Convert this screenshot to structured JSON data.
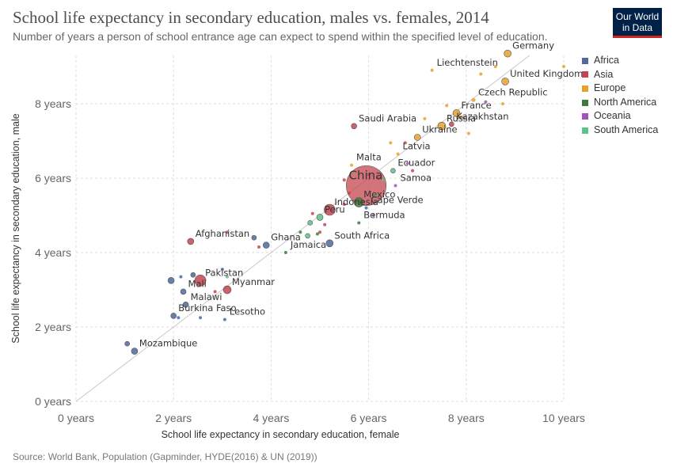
{
  "title": "School life expectancy in secondary education, males vs. females, 2014",
  "subtitle": "Number of years a person of school entrance age can expect to spend within the specified level of education.",
  "logo": {
    "line1": "Our World",
    "line2": "in Data"
  },
  "source": "Source: World Bank, Population (Gapminder, HYDE(2016) & UN (2019))",
  "legend": [
    {
      "name": "Africa",
      "color": "#4c6a9c"
    },
    {
      "name": "Asia",
      "color": "#c4454f"
    },
    {
      "name": "Europe",
      "color": "#e8a030"
    },
    {
      "name": "North America",
      "color": "#3e7a3b"
    },
    {
      "name": "Oceania",
      "color": "#a054b5"
    },
    {
      "name": "South America",
      "color": "#5ec28a"
    }
  ],
  "chart_data": {
    "type": "scatter",
    "title": "School life expectancy in secondary education, males vs. females, 2014",
    "xlabel": "School life expectancy in secondary education, female",
    "ylabel": "School life expectancy in secondary education, male",
    "xlim": [
      0,
      10
    ],
    "ylim": [
      0,
      9.3
    ],
    "x_ticks": [
      "0 years",
      "2 years",
      "4 years",
      "6 years",
      "8 years",
      "10 years"
    ],
    "y_ticks": [
      "0 years",
      "2 years",
      "4 years",
      "6 years",
      "8 years"
    ],
    "x_tick_values": [
      0,
      2,
      4,
      6,
      8,
      10
    ],
    "y_tick_values": [
      0,
      2,
      4,
      6,
      8
    ],
    "grid": true,
    "legend_position": "right",
    "points": [
      {
        "label": "Germany",
        "x": 8.85,
        "y": 9.35,
        "region": "Europe",
        "size": 4.5
      },
      {
        "label": "Liechtenstein",
        "x": 7.3,
        "y": 8.9,
        "region": "Europe",
        "size": 2
      },
      {
        "label": "United Kingdom",
        "x": 8.8,
        "y": 8.6,
        "region": "Europe",
        "size": 4.5
      },
      {
        "label": "Czech Republic",
        "x": 8.15,
        "y": 8.1,
        "region": "Europe",
        "size": 2.5
      },
      {
        "label": "France",
        "x": 7.8,
        "y": 7.75,
        "region": "Europe",
        "size": 4.5
      },
      {
        "label": "Saudi Arabia",
        "x": 5.7,
        "y": 7.4,
        "region": "Asia",
        "size": 3.5
      },
      {
        "label": "Russia",
        "x": 7.5,
        "y": 7.4,
        "region": "Europe",
        "size": 5
      },
      {
        "label": "Kazakhstan",
        "x": 7.7,
        "y": 7.45,
        "region": "Asia",
        "size": 3
      },
      {
        "label": "Ukraine",
        "x": 7.0,
        "y": 7.1,
        "region": "Europe",
        "size": 4
      },
      {
        "label": "Latvia",
        "x": 6.6,
        "y": 6.65,
        "region": "Europe",
        "size": 2
      },
      {
        "label": "Malta",
        "x": 5.65,
        "y": 6.35,
        "region": "Europe",
        "size": 2
      },
      {
        "label": "Ecuador",
        "x": 6.5,
        "y": 6.2,
        "region": "South America",
        "size": 3
      },
      {
        "label": "Samoa",
        "x": 6.55,
        "y": 5.8,
        "region": "Oceania",
        "size": 2
      },
      {
        "label": "China",
        "x": 5.95,
        "y": 5.8,
        "region": "Asia",
        "size": 12
      },
      {
        "label": "Mexico",
        "x": 5.8,
        "y": 5.35,
        "region": "North America",
        "size": 6
      },
      {
        "label": "Indonesia",
        "x": 5.2,
        "y": 5.15,
        "region": "Asia",
        "size": 7
      },
      {
        "label": "Cape Verde",
        "x": 5.95,
        "y": 5.2,
        "region": "Africa",
        "size": 2
      },
      {
        "label": "Peru",
        "x": 5.0,
        "y": 4.95,
        "region": "South America",
        "size": 4
      },
      {
        "label": "Bermuda",
        "x": 5.8,
        "y": 4.8,
        "region": "North America",
        "size": 2
      },
      {
        "label": "Afghanistan",
        "x": 2.35,
        "y": 4.3,
        "region": "Asia",
        "size": 4
      },
      {
        "label": "Ghana",
        "x": 3.9,
        "y": 4.2,
        "region": "Africa",
        "size": 4
      },
      {
        "label": "South Africa",
        "x": 5.2,
        "y": 4.25,
        "region": "Africa",
        "size": 4.5
      },
      {
        "label": "Jamaica",
        "x": 4.3,
        "y": 4.0,
        "region": "North America",
        "size": 2
      },
      {
        "label": "Pakistan",
        "x": 2.55,
        "y": 3.25,
        "region": "Asia",
        "size": 7
      },
      {
        "label": "Myanmar",
        "x": 3.1,
        "y": 3.0,
        "region": "Asia",
        "size": 5
      },
      {
        "label": "Mali",
        "x": 2.2,
        "y": 2.95,
        "region": "Africa",
        "size": 3.5
      },
      {
        "label": "Malawi",
        "x": 2.25,
        "y": 2.6,
        "region": "Africa",
        "size": 3.5
      },
      {
        "label": "Burkina Faso",
        "x": 2.0,
        "y": 2.3,
        "region": "Africa",
        "size": 3.5
      },
      {
        "label": "Lesotho",
        "x": 3.05,
        "y": 2.2,
        "region": "Africa",
        "size": 2
      },
      {
        "label": "Mozambique",
        "x": 1.2,
        "y": 1.35,
        "region": "Africa",
        "size": 4
      }
    ],
    "unlabeled_points": [
      {
        "x": 10.0,
        "y": 9.0,
        "region": "Europe",
        "size": 2
      },
      {
        "x": 8.6,
        "y": 9.0,
        "region": "Europe",
        "size": 2
      },
      {
        "x": 8.3,
        "y": 8.8,
        "region": "Europe",
        "size": 2
      },
      {
        "x": 7.6,
        "y": 7.95,
        "region": "Europe",
        "size": 2
      },
      {
        "x": 7.9,
        "y": 7.65,
        "region": "Europe",
        "size": 2
      },
      {
        "x": 8.05,
        "y": 7.2,
        "region": "Europe",
        "size": 2
      },
      {
        "x": 8.4,
        "y": 8.05,
        "region": "Oceania",
        "size": 2
      },
      {
        "x": 8.75,
        "y": 8.0,
        "region": "Europe",
        "size": 2
      },
      {
        "x": 7.15,
        "y": 7.6,
        "region": "Europe",
        "size": 2
      },
      {
        "x": 6.45,
        "y": 6.95,
        "region": "Europe",
        "size": 2
      },
      {
        "x": 6.75,
        "y": 6.95,
        "region": "Asia",
        "size": 2
      },
      {
        "x": 6.9,
        "y": 6.2,
        "region": "Asia",
        "size": 2
      },
      {
        "x": 6.8,
        "y": 6.4,
        "region": "Oceania",
        "size": 2
      },
      {
        "x": 6.0,
        "y": 6.1,
        "region": "Asia",
        "size": 2
      },
      {
        "x": 6.2,
        "y": 6.0,
        "region": "Asia",
        "size": 2
      },
      {
        "x": 5.5,
        "y": 5.95,
        "region": "Asia",
        "size": 2
      },
      {
        "x": 6.3,
        "y": 5.95,
        "region": "South America",
        "size": 2
      },
      {
        "x": 5.6,
        "y": 5.6,
        "region": "Asia",
        "size": 2
      },
      {
        "x": 6.15,
        "y": 5.55,
        "region": "South America",
        "size": 2
      },
      {
        "x": 5.5,
        "y": 5.3,
        "region": "Asia",
        "size": 2
      },
      {
        "x": 4.85,
        "y": 5.05,
        "region": "Asia",
        "size": 2
      },
      {
        "x": 5.1,
        "y": 4.75,
        "region": "Asia",
        "size": 2
      },
      {
        "x": 5.0,
        "y": 4.55,
        "region": "Asia",
        "size": 2
      },
      {
        "x": 4.8,
        "y": 4.8,
        "region": "South America",
        "size": 3
      },
      {
        "x": 6.1,
        "y": 5.0,
        "region": "Oceania",
        "size": 2
      },
      {
        "x": 4.75,
        "y": 4.45,
        "region": "South America",
        "size": 3
      },
      {
        "x": 4.95,
        "y": 4.5,
        "region": "North America",
        "size": 2
      },
      {
        "x": 4.6,
        "y": 4.55,
        "region": "North America",
        "size": 2
      },
      {
        "x": 3.65,
        "y": 4.4,
        "region": "Africa",
        "size": 3
      },
      {
        "x": 3.75,
        "y": 4.15,
        "region": "Asia",
        "size": 2
      },
      {
        "x": 3.1,
        "y": 4.55,
        "region": "Asia",
        "size": 2
      },
      {
        "x": 1.95,
        "y": 3.25,
        "region": "Africa",
        "size": 4
      },
      {
        "x": 2.15,
        "y": 3.35,
        "region": "Africa",
        "size": 2
      },
      {
        "x": 2.4,
        "y": 3.4,
        "region": "Africa",
        "size": 3
      },
      {
        "x": 3.1,
        "y": 3.35,
        "region": "South America",
        "size": 2
      },
      {
        "x": 2.85,
        "y": 2.95,
        "region": "Asia",
        "size": 2
      },
      {
        "x": 2.1,
        "y": 2.25,
        "region": "Africa",
        "size": 2
      },
      {
        "x": 2.55,
        "y": 2.25,
        "region": "Africa",
        "size": 2
      },
      {
        "x": 1.05,
        "y": 1.55,
        "region": "Africa",
        "size": 3
      },
      {
        "x": 3.0,
        "y": 3.55,
        "region": "Africa",
        "size": 2
      }
    ]
  }
}
